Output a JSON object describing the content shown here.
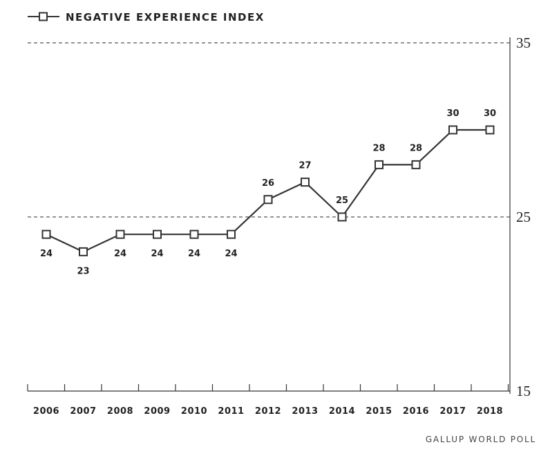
{
  "chart_data": {
    "type": "line",
    "title": "",
    "legend": {
      "label": "NEGATIVE EXPERIENCE INDEX",
      "placement": "top-left"
    },
    "categories": [
      "2006",
      "2007",
      "2008",
      "2009",
      "2010",
      "2011",
      "2012",
      "2013",
      "2014",
      "2015",
      "2016",
      "2017",
      "2018"
    ],
    "series": [
      {
        "name": "NEGATIVE EXPERIENCE INDEX",
        "values": [
          24,
          23,
          24,
          24,
          24,
          24,
          26,
          27,
          25,
          28,
          28,
          30,
          30
        ]
      }
    ],
    "ylim": [
      15,
      35
    ],
    "yticks": [
      "15",
      "25",
      "35"
    ],
    "gridlines": [
      25,
      35
    ],
    "y_axis_side": "right",
    "xlabel": "",
    "ylabel": "",
    "source": "GALLUP WORLD POLL"
  }
}
